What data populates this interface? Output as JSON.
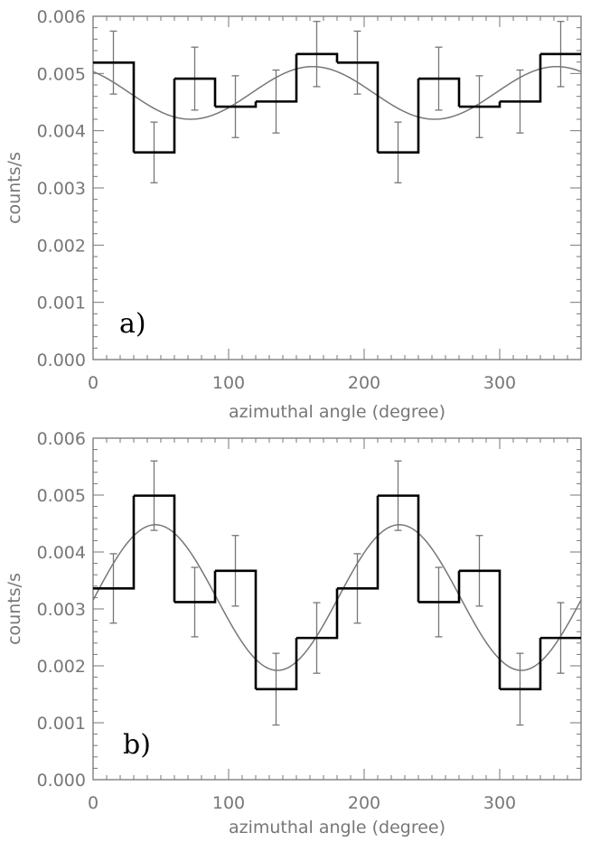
{
  "chart_data": [
    {
      "type": "step",
      "panel_label": "a)",
      "xlabel": "azimuthal angle (degree)",
      "ylabel": "counts/s",
      "xlim": [
        0,
        360
      ],
      "ylim": [
        0,
        0.006
      ],
      "x_ticks": [
        0,
        100,
        200,
        300
      ],
      "x_tick_labels": [
        "0",
        "100",
        "200",
        "300"
      ],
      "y_ticks": [
        0,
        0.001,
        0.002,
        0.003,
        0.004,
        0.005,
        0.006
      ],
      "y_tick_labels": [
        "0.000",
        "0.001",
        "0.002",
        "0.003",
        "0.004",
        "0.005",
        "0.006"
      ],
      "bin_width": 30,
      "bin_edges": [
        0,
        30,
        60,
        90,
        120,
        150,
        180,
        210,
        240,
        270,
        300,
        330,
        360
      ],
      "bins": [
        {
          "x": 15,
          "y": 0.00519,
          "err": 0.00055
        },
        {
          "x": 45,
          "y": 0.00362,
          "err": 0.00053
        },
        {
          "x": 75,
          "y": 0.00491,
          "err": 0.00055
        },
        {
          "x": 105,
          "y": 0.00442,
          "err": 0.00054
        },
        {
          "x": 135,
          "y": 0.00451,
          "err": 0.00055
        },
        {
          "x": 165,
          "y": 0.00534,
          "err": 0.00057
        },
        {
          "x": 195,
          "y": 0.00519,
          "err": 0.00055
        },
        {
          "x": 225,
          "y": 0.00362,
          "err": 0.00053
        },
        {
          "x": 255,
          "y": 0.00491,
          "err": 0.00055
        },
        {
          "x": 285,
          "y": 0.00442,
          "err": 0.00054
        },
        {
          "x": 315,
          "y": 0.00451,
          "err": 0.00055
        },
        {
          "x": 345,
          "y": 0.00534,
          "err": 0.00057
        }
      ],
      "fit": {
        "model": "A + B*cos(2*(x - phi))",
        "A": 0.00466,
        "B": 0.00046,
        "phi_deg": 162
      }
    },
    {
      "type": "step",
      "panel_label": "b)",
      "xlabel": "azimuthal angle (degree)",
      "ylabel": "counts/s",
      "xlim": [
        0,
        360
      ],
      "ylim": [
        0,
        0.006
      ],
      "x_ticks": [
        0,
        100,
        200,
        300
      ],
      "x_tick_labels": [
        "0",
        "100",
        "200",
        "300"
      ],
      "y_ticks": [
        0,
        0.001,
        0.002,
        0.003,
        0.004,
        0.005,
        0.006
      ],
      "y_tick_labels": [
        "0.000",
        "0.001",
        "0.002",
        "0.003",
        "0.004",
        "0.005",
        "0.006"
      ],
      "bin_width": 30,
      "bin_edges": [
        0,
        30,
        60,
        90,
        120,
        150,
        180,
        210,
        240,
        270,
        300,
        330,
        360
      ],
      "bins": [
        {
          "x": 15,
          "y": 0.00336,
          "err": 0.00061
        },
        {
          "x": 45,
          "y": 0.00499,
          "err": 0.00061
        },
        {
          "x": 75,
          "y": 0.00312,
          "err": 0.00061
        },
        {
          "x": 105,
          "y": 0.00367,
          "err": 0.00062
        },
        {
          "x": 135,
          "y": 0.00159,
          "err": 0.00063
        },
        {
          "x": 165,
          "y": 0.00249,
          "err": 0.00062
        },
        {
          "x": 195,
          "y": 0.00336,
          "err": 0.00061
        },
        {
          "x": 225,
          "y": 0.00499,
          "err": 0.00061
        },
        {
          "x": 255,
          "y": 0.00312,
          "err": 0.00061
        },
        {
          "x": 285,
          "y": 0.00367,
          "err": 0.00062
        },
        {
          "x": 315,
          "y": 0.00159,
          "err": 0.00063
        },
        {
          "x": 345,
          "y": 0.00249,
          "err": 0.00062
        }
      ],
      "fit": {
        "model": "A + B*cos(2*(x - phi))",
        "A": 0.0032,
        "B": 0.00128,
        "phi_deg": 46
      }
    }
  ]
}
